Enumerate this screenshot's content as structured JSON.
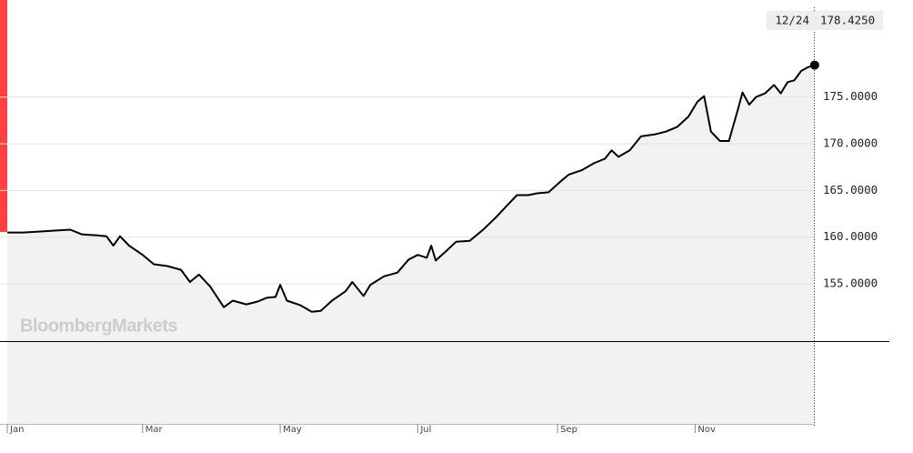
{
  "chart_data": {
    "type": "area",
    "watermark": "BloombergMarkets",
    "line_color": "#000000",
    "fill_color": "#f2f2f2",
    "grid": true,
    "ylim": [
      140,
      185.4
    ],
    "yticks": [
      {
        "value": 155,
        "label": "155.0000"
      },
      {
        "value": 160,
        "label": "160.0000"
      },
      {
        "value": 165,
        "label": "165.0000"
      },
      {
        "value": 170,
        "label": "170.0000"
      },
      {
        "value": 175,
        "label": "175.0000"
      }
    ],
    "xticks": [
      {
        "value": "01/01",
        "label": "Jan"
      },
      {
        "value": "03/01",
        "label": "Mar"
      },
      {
        "value": "05/01",
        "label": "May"
      },
      {
        "value": "07/01",
        "label": "Jul"
      },
      {
        "value": "09/01",
        "label": "Sep"
      },
      {
        "value": "11/01",
        "label": "Nov"
      }
    ],
    "last_value_label": "178.4250",
    "x": [
      "01/01",
      "01/08",
      "01/15",
      "01/22",
      "01/29",
      "02/03",
      "02/10",
      "02/14",
      "02/17",
      "02/20",
      "02/24",
      "03/01",
      "03/06",
      "03/12",
      "03/18",
      "03/22",
      "03/26",
      "03/31",
      "04/06",
      "04/10",
      "04/16",
      "04/21",
      "04/25",
      "04/29",
      "05/01",
      "05/04",
      "05/10",
      "05/15",
      "05/19",
      "05/24",
      "05/30",
      "06/02",
      "06/07",
      "06/10",
      "06/16",
      "06/22",
      "06/27",
      "07/01",
      "07/05",
      "07/07",
      "07/09",
      "07/14",
      "07/18",
      "07/24",
      "07/30",
      "08/05",
      "08/10",
      "08/14",
      "08/19",
      "08/23",
      "08/28",
      "09/02",
      "09/06",
      "09/12",
      "09/17",
      "09/22",
      "09/25",
      "09/28",
      "10/03",
      "10/08",
      "10/14",
      "10/19",
      "10/24",
      "10/29",
      "11/02",
      "11/05",
      "11/08",
      "11/12",
      "11/16",
      "11/20",
      "11/22",
      "11/25",
      "11/28",
      "12/02",
      "12/06",
      "12/09",
      "12/12",
      "12/15",
      "12/18",
      "12/21",
      "12/24"
    ],
    "values": [
      160.5,
      160.5,
      160.6,
      160.7,
      160.8,
      160.3,
      160.2,
      160.1,
      159.1,
      160.1,
      159.1,
      158.1,
      157.1,
      156.9,
      156.5,
      155.2,
      156.0,
      154.7,
      152.5,
      153.2,
      152.8,
      153.1,
      153.5,
      153.6,
      154.9,
      153.2,
      152.7,
      152.0,
      152.1,
      153.2,
      154.2,
      155.2,
      153.7,
      154.9,
      155.8,
      156.2,
      157.6,
      158.1,
      157.8,
      159.1,
      157.5,
      158.6,
      159.5,
      159.6,
      160.8,
      162.2,
      163.5,
      164.5,
      164.5,
      164.7,
      164.8,
      165.9,
      166.7,
      167.2,
      167.9,
      168.4,
      169.3,
      168.6,
      169.3,
      170.8,
      171.0,
      171.3,
      171.8,
      172.9,
      174.5,
      175.1,
      171.3,
      170.3,
      170.3,
      173.7,
      175.5,
      174.2,
      175.0,
      175.4,
      176.3,
      175.4,
      176.6,
      176.8,
      177.8,
      178.2,
      178.425
    ]
  }
}
